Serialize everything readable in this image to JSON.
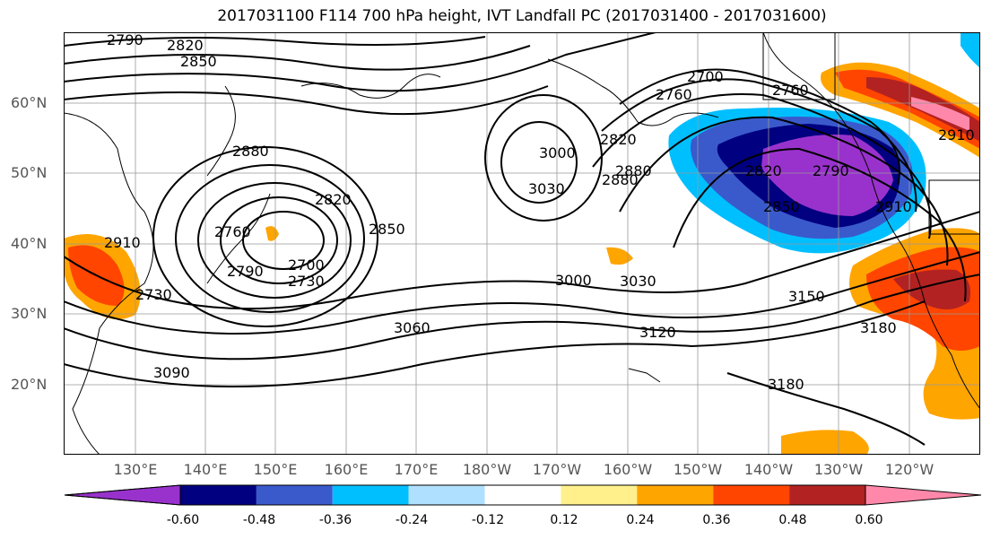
{
  "title": "2017031100 F114 700 hPa height, IVT Landfall PC (2017031400 - 2017031600)",
  "lat_labels": [
    "60°N",
    "50°N",
    "40°N",
    "30°N",
    "20°N"
  ],
  "lon_labels": [
    "130°E",
    "140°E",
    "150°E",
    "160°E",
    "170°E",
    "180°W",
    "170°W",
    "160°W",
    "150°W",
    "140°W",
    "130°W",
    "120°W"
  ],
  "contour_labels": [
    "2790",
    "2820",
    "2850",
    "2880",
    "2760",
    "2700",
    "2730",
    "2790",
    "2820",
    "2850",
    "2880",
    "3000",
    "3030",
    "2700",
    "2760",
    "2820",
    "2880",
    "2790",
    "2850",
    "2910",
    "3000",
    "3030",
    "3060",
    "3090",
    "3120",
    "3150",
    "3180",
    "3180",
    "2910",
    "2730",
    "2910",
    "2760",
    "2820"
  ],
  "colorbar": {
    "colors": [
      "#9932cc",
      "#000080",
      "#3a5acc",
      "#00bfff",
      "#b0e0ff",
      "#ffffff",
      "#fff08c",
      "#ffa500",
      "#ff4500",
      "#b22222",
      "#ff88aa"
    ],
    "ticks": [
      "-0.60",
      "-0.48",
      "-0.36",
      "-0.24",
      "-0.12",
      "0.12",
      "0.24",
      "0.36",
      "0.48",
      "0.60"
    ]
  }
}
